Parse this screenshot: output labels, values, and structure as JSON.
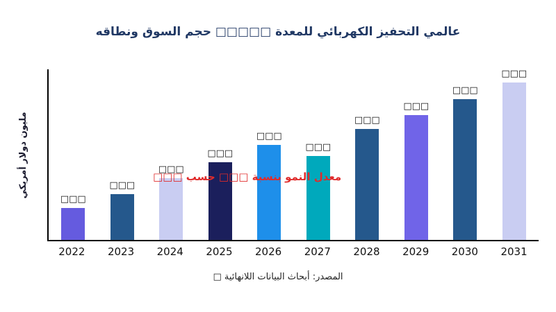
{
  "page": {
    "background": "#ffffff"
  },
  "chart_data": {
    "type": "bar",
    "title": "عالمي التحفيز الكهربائي للمعدة □□□□□ حجم السوق ونطاقه",
    "ylabel": "مليون دولار أمريكي",
    "xlabel": "",
    "annotation": "معدل النمو بنسبة □□□ حسب □□□",
    "source": "المصدر: أبحاث البيانات اللانهائية □",
    "categories": [
      "2022",
      "2023",
      "2024",
      "2025",
      "2026",
      "2027",
      "2028",
      "2029",
      "2030",
      "2031"
    ],
    "values_relative": [
      20,
      29,
      39,
      49,
      60,
      53,
      70,
      79,
      89,
      100
    ],
    "bar_labels": [
      "□□□",
      "□□□",
      "□□□",
      "□□□",
      "□□□",
      "□□□",
      "□□□",
      "□□□",
      "□□□",
      "□□□"
    ],
    "bar_colors": [
      "#655BDF",
      "#25588C",
      "#C9CDF2",
      "#1B1F5C",
      "#1E8FEA",
      "#00A9BC",
      "#25588C",
      "#7064E8",
      "#25588C",
      "#C9CDF2"
    ],
    "ylim": [
      0,
      100
    ],
    "grid": false,
    "legend": "none",
    "colors": {
      "title_text": "#203864",
      "annotation_text": "#E02B2B",
      "axis": "#000000",
      "label_text": "#111111"
    }
  }
}
